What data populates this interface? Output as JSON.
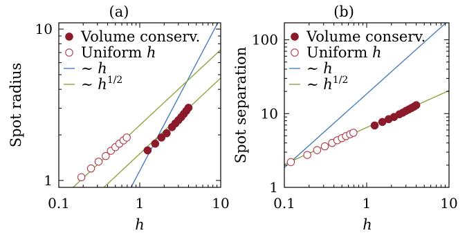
{
  "chart_data": [
    {
      "type": "scatter",
      "panel_label": "(a)",
      "xlabel": "h",
      "ylabel": "Spot radius",
      "xscale": "log",
      "yscale": "log",
      "xlim": [
        0.1,
        10
      ],
      "ylim": [
        0.9,
        11
      ],
      "xticks": [
        0.1,
        1,
        10
      ],
      "xtick_labels": [
        "0.1",
        "1",
        "10"
      ],
      "yticks": [
        1,
        10
      ],
      "ytick_labels": [
        "1",
        "10"
      ],
      "grid": false,
      "legend_position": "top-left",
      "series": [
        {
          "name": "Volume conserv.",
          "marker": "filled-circle",
          "color": "#8b1a2b",
          "x": [
            1.25,
            1.55,
            1.85,
            2.15,
            2.5,
            2.75,
            3.0,
            3.25,
            3.5,
            3.75,
            4.0
          ],
          "y": [
            1.58,
            1.75,
            1.92,
            2.05,
            2.25,
            2.38,
            2.5,
            2.62,
            2.75,
            2.88,
            3.02
          ]
        },
        {
          "name": "Uniform h",
          "marker": "open-circle",
          "color": "#b03a48",
          "x": [
            0.19,
            0.25,
            0.31,
            0.38,
            0.44,
            0.5,
            0.56,
            0.63,
            0.69
          ],
          "y": [
            1.05,
            1.2,
            1.33,
            1.45,
            1.57,
            1.66,
            1.75,
            1.84,
            1.92
          ]
        },
        {
          "name": "~ h",
          "type": "line",
          "color": "#4a7ebb",
          "x": [
            0.78,
            9.2
          ],
          "y": [
            0.9,
            11
          ]
        },
        {
          "name": "~ h^{1/2}",
          "type": "line",
          "color": "#8aa63c",
          "lines": [
            {
              "x": [
                0.15,
                10
              ],
              "y": [
                0.9,
                7.3
              ]
            },
            {
              "x": [
                0.36,
                10
              ],
              "y": [
                0.9,
                4.75
              ]
            }
          ]
        }
      ]
    },
    {
      "type": "scatter",
      "panel_label": "(b)",
      "xlabel": "h",
      "ylabel": "Spot separation",
      "xscale": "log",
      "yscale": "log",
      "xlim": [
        0.1,
        10
      ],
      "ylim": [
        1,
        170
      ],
      "xticks": [
        0.1,
        1,
        10
      ],
      "xtick_labels": [
        "0.1",
        "1",
        "10"
      ],
      "yticks": [
        1,
        10,
        100
      ],
      "ytick_labels": [
        "1",
        "10",
        "100"
      ],
      "grid": false,
      "legend_position": "top-left",
      "series": [
        {
          "name": "Volume conserv.",
          "marker": "filled-circle",
          "color": "#8b1a2b",
          "x": [
            1.25,
            1.55,
            1.85,
            2.15,
            2.5,
            2.75,
            3.0,
            3.25,
            3.5,
            3.75,
            4.0
          ],
          "y": [
            6.9,
            7.7,
            8.4,
            9.0,
            9.8,
            10.3,
            10.9,
            11.4,
            11.9,
            12.4,
            13.0
          ]
        },
        {
          "name": "Uniform h",
          "marker": "open-circle",
          "color": "#b03a48",
          "x": [
            0.12,
            0.19,
            0.25,
            0.31,
            0.38,
            0.44,
            0.5,
            0.56,
            0.63,
            0.69
          ],
          "y": [
            2.2,
            2.75,
            3.2,
            3.6,
            4.0,
            4.35,
            4.65,
            4.95,
            5.25,
            5.5
          ]
        },
        {
          "name": "~ h",
          "type": "line",
          "color": "#4a7ebb",
          "x": [
            0.1,
            10
          ],
          "y": [
            1.85,
            185
          ]
        },
        {
          "name": "~ h^{1/2}",
          "type": "line",
          "color": "#8aa63c",
          "x": [
            0.1,
            10
          ],
          "y": [
            2.05,
            20.5
          ]
        }
      ]
    }
  ]
}
